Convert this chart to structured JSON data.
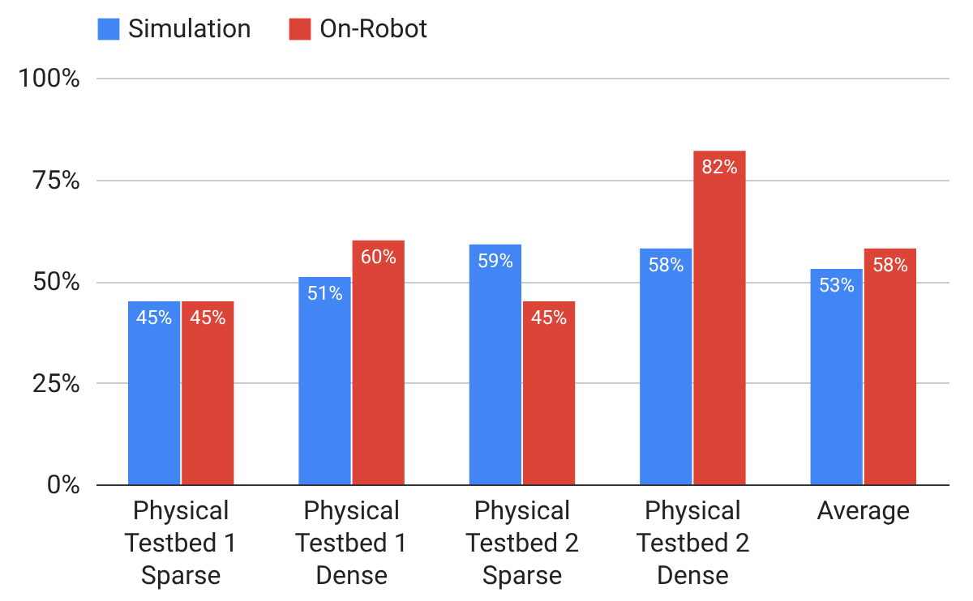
{
  "chart_data": {
    "type": "bar",
    "categories": [
      "Physical Testbed 1 Sparse",
      "Physical Testbed 1 Dense",
      "Physical Testbed 2 Sparse",
      "Physical Testbed 2 Dense",
      "Average"
    ],
    "series": [
      {
        "name": "Simulation",
        "color": "#4285f4",
        "values": [
          45,
          51,
          59,
          58,
          53
        ],
        "value_labels": [
          "45%",
          "51%",
          "59%",
          "58%",
          "53%"
        ]
      },
      {
        "name": "On-Robot",
        "color": "#db4437",
        "values": [
          45,
          60,
          45,
          82,
          58
        ],
        "value_labels": [
          "45%",
          "60%",
          "45%",
          "82%",
          "58%"
        ]
      }
    ],
    "ylim": [
      0,
      100
    ],
    "yticks": [
      {
        "value": 0,
        "label": "0%"
      },
      {
        "value": 25,
        "label": "25%"
      },
      {
        "value": 50,
        "label": "50%"
      },
      {
        "value": 75,
        "label": "75%"
      },
      {
        "value": 100,
        "label": "100%"
      }
    ],
    "grid": "y",
    "legend": "top"
  }
}
